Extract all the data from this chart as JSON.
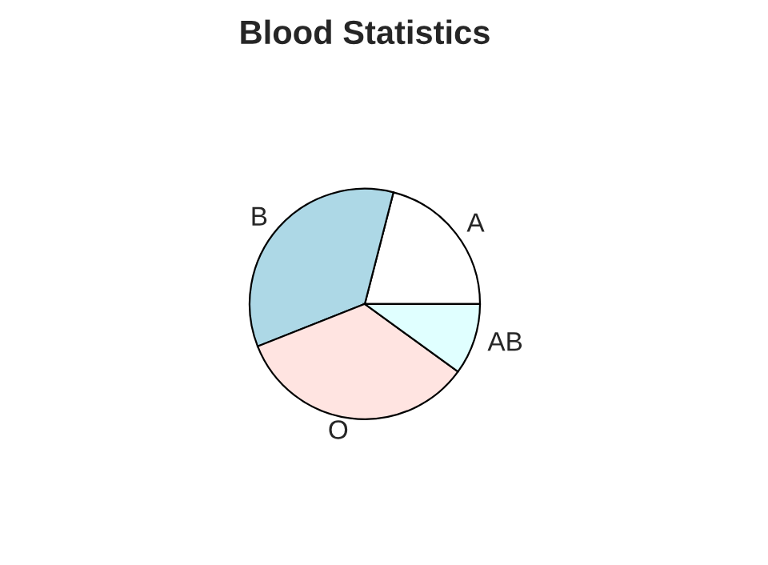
{
  "chart_data": {
    "type": "pie",
    "title": "Blood Statistics",
    "categories": [
      "A",
      "B",
      "O",
      "AB"
    ],
    "values": [
      21,
      35,
      34,
      10
    ],
    "colors": [
      "#ffffff",
      "#add8e6",
      "#ffe4e1",
      "#e0ffff"
    ]
  }
}
